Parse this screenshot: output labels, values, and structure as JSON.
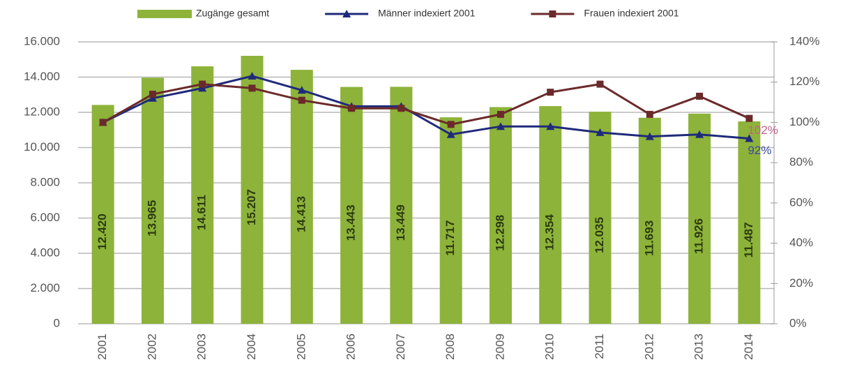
{
  "chart_data": {
    "type": "combo",
    "categories": [
      "2001",
      "2002",
      "2003",
      "2004",
      "2005",
      "2006",
      "2007",
      "2008",
      "2009",
      "2010",
      "2011",
      "2012",
      "2013",
      "2014"
    ],
    "series": [
      {
        "name": "Zugänge gesamt",
        "type": "bar",
        "color": "#8db33a",
        "values": [
          12420,
          13965,
          14611,
          15207,
          14413,
          13443,
          13449,
          11717,
          12298,
          12354,
          12035,
          11693,
          11926,
          11487
        ],
        "value_labels": [
          "12.420",
          "13.965",
          "14.611",
          "15.207",
          "14.413",
          "13.443",
          "13.449",
          "11.717",
          "12.298",
          "12.354",
          "12.035",
          "11.693",
          "11.926",
          "11.487"
        ]
      },
      {
        "name": "Männer indexiert 2001",
        "type": "line",
        "axis": "y2",
        "color": "#1f2a7a",
        "marker": "triangle",
        "values": [
          100,
          112,
          117,
          123,
          116,
          108,
          108,
          94,
          98,
          98,
          95,
          93,
          94,
          92
        ],
        "value_labels": [
          null,
          null,
          null,
          null,
          null,
          null,
          null,
          null,
          null,
          null,
          null,
          null,
          null,
          "92%"
        ],
        "label_color": "#3a4aa0"
      },
      {
        "name": "Frauen indexiert 2001",
        "type": "line",
        "axis": "y2",
        "color": "#6b2a2a",
        "marker": "square",
        "values": [
          100,
          114,
          119,
          117,
          111,
          107,
          107,
          99,
          104,
          115,
          119,
          104,
          113,
          102
        ],
        "value_labels": [
          null,
          null,
          null,
          null,
          null,
          null,
          null,
          null,
          null,
          null,
          null,
          null,
          null,
          "102%"
        ],
        "label_color": "#c0608a"
      }
    ],
    "ylim": [
      0,
      16000
    ],
    "yticks": [
      0,
      {
        "value": 2000,
        "label": "2.000"
      },
      {
        "value": 4000,
        "label": "4.000"
      },
      {
        "value": 6000,
        "label": "6.000"
      },
      {
        "value": 8000,
        "label": "8.000"
      },
      {
        "value": 10000,
        "label": "10.000"
      },
      {
        "value": 12000,
        "label": "12.000"
      },
      {
        "value": 14000,
        "label": "14.000"
      },
      {
        "value": 16000,
        "label": "16.000"
      }
    ],
    "y2lim": [
      0,
      140
    ],
    "y2ticks": [
      {
        "value": 0,
        "label": "0%"
      },
      {
        "value": 20,
        "label": "20%"
      },
      {
        "value": 40,
        "label": "40%"
      },
      {
        "value": 60,
        "label": "60%"
      },
      {
        "value": 80,
        "label": "80%"
      },
      {
        "value": 100,
        "label": "100%"
      },
      {
        "value": 120,
        "label": "120%"
      },
      {
        "value": 140,
        "label": "140%"
      }
    ],
    "grid": true,
    "legend": "top"
  }
}
